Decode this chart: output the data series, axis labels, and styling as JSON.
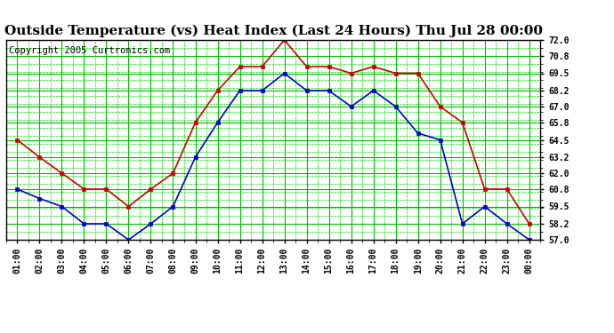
{
  "title": "Outside Temperature (vs) Heat Index (Last 24 Hours) Thu Jul 28 00:00",
  "copyright": "Copyright 2005 Curtronics.com",
  "x_labels": [
    "01:00",
    "02:00",
    "03:00",
    "04:00",
    "05:00",
    "06:00",
    "07:00",
    "08:00",
    "09:00",
    "10:00",
    "11:00",
    "12:00",
    "13:00",
    "14:00",
    "15:00",
    "16:00",
    "17:00",
    "18:00",
    "19:00",
    "20:00",
    "21:00",
    "22:00",
    "23:00",
    "00:00"
  ],
  "blue_data": [
    60.8,
    60.1,
    59.5,
    58.2,
    58.2,
    57.0,
    58.2,
    59.5,
    63.2,
    65.8,
    68.2,
    68.2,
    69.5,
    68.2,
    68.2,
    67.0,
    68.2,
    67.0,
    65.0,
    64.5,
    58.2,
    59.5,
    58.2,
    57.0
  ],
  "red_data": [
    64.5,
    63.2,
    62.0,
    60.8,
    60.8,
    59.5,
    60.8,
    62.0,
    65.8,
    68.2,
    70.0,
    70.0,
    72.0,
    70.0,
    70.0,
    69.5,
    70.0,
    69.5,
    69.5,
    67.0,
    65.8,
    60.8,
    60.8,
    58.2
  ],
  "y_ticks": [
    57.0,
    58.2,
    59.5,
    60.8,
    62.0,
    63.2,
    64.5,
    65.8,
    67.0,
    68.2,
    69.5,
    70.8,
    72.0
  ],
  "ylim": [
    57.0,
    72.0
  ],
  "bg_color": "#ffffff",
  "plot_bg_color": "#ffffff",
  "grid_color_major": "#00bb00",
  "grid_color_minor": "#00dd00",
  "line_color_blue": "#0000cc",
  "line_color_red": "#cc0000",
  "marker": "s",
  "marker_size": 3,
  "title_fontsize": 11,
  "copyright_fontsize": 7.5
}
